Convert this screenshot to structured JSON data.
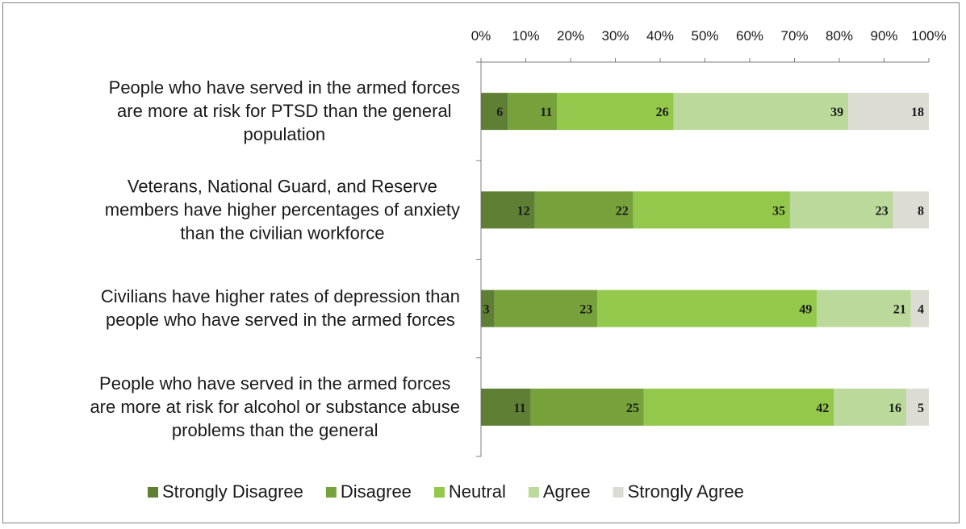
{
  "chart_data": {
    "type": "bar",
    "orientation": "horizontal",
    "stacked": "percent",
    "title": "",
    "categories": [
      "People who have served in the armed forces are more at risk for PTSD than the general population",
      "Veterans, National Guard, and Reserve members have higher percentages of anxiety than the civilian workforce",
      "Civilians have higher rates of depression than people who have served in the armed forces",
      "People who have served in the armed forces are more at risk for alcohol or substance abuse problems than the general"
    ],
    "category_lines": [
      [
        "People who have served in the armed forces",
        "are more at risk for PTSD than the general",
        "population"
      ],
      [
        "Veterans, National Guard, and Reserve",
        "members have higher percentages of anxiety",
        "than the civilian workforce"
      ],
      [
        "Civilians have higher rates of depression than",
        "people who have served in the armed forces"
      ],
      [
        "People who have served in the armed forces",
        "are more at risk for alcohol or substance abuse",
        "problems than the general"
      ]
    ],
    "series": [
      {
        "name": "Strongly Disagree",
        "color": "#5f7f35",
        "values": [
          6,
          12,
          3,
          11
        ]
      },
      {
        "name": "Disagree",
        "color": "#77a23b",
        "values": [
          11,
          22,
          23,
          25
        ]
      },
      {
        "name": "Neutral",
        "color": "#93c84c",
        "values": [
          26,
          35,
          49,
          42
        ]
      },
      {
        "name": "Agree",
        "color": "#bcd99c",
        "values": [
          39,
          23,
          21,
          16
        ]
      },
      {
        "name": "Strongly Agree",
        "color": "#dcdcd4",
        "values": [
          18,
          8,
          4,
          5
        ]
      }
    ],
    "xlim": [
      0,
      100
    ],
    "x_ticks": [
      "0%",
      "10%",
      "20%",
      "30%",
      "40%",
      "50%",
      "60%",
      "70%",
      "80%",
      "90%",
      "100%"
    ],
    "x_axis_position": "top",
    "legend": "bottom",
    "grid": false
  }
}
